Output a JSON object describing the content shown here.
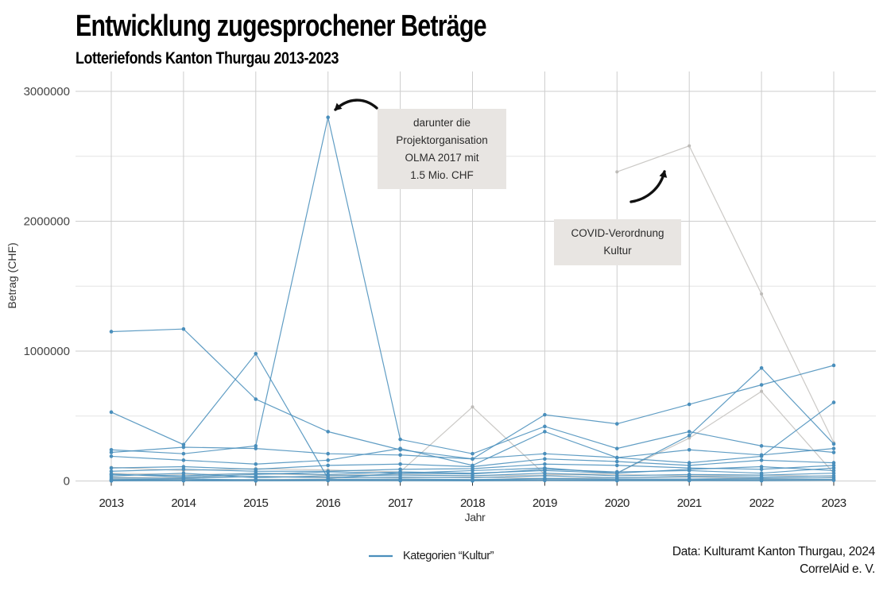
{
  "header": {
    "title": "Entwicklung zugesprochener Beträge",
    "subtitle": "Lotteriefonds Kanton Thurgau 2013-2023"
  },
  "annotations": {
    "olma": "darunter die\nProjektorganisation\nOLMA 2017 mit\n1.5 Mio. CHF",
    "covid": "COVID-Verordnung\nKultur"
  },
  "legend": {
    "label": "Kategorien “Kultur”"
  },
  "caption": {
    "line1": "Data: Kulturamt Kanton Thurgau, 2024",
    "line2": "CorrelAid e. V."
  },
  "colors": {
    "kultur_blue": "#4a8fbc",
    "other_gray": "#c8c6c3",
    "grid_major": "#cdcdcd",
    "grid_minor": "#e4e4e4",
    "axis_text": "#444444",
    "annotation_bg": "#e8e5e2",
    "arrow_black": "#111111"
  },
  "chart_data": {
    "type": "line",
    "title": "Entwicklung zugesprochener Beträge",
    "subtitle": "Lotteriefonds Kanton Thurgau 2013-2023",
    "xlabel": "Jahr",
    "ylabel": "Betrag (CHF)",
    "x": [
      2013,
      2014,
      2015,
      2016,
      2017,
      2018,
      2019,
      2020,
      2021,
      2022,
      2023
    ],
    "x_tick_labels": [
      "2013",
      "2014",
      "2015",
      "2016",
      "2017",
      "2018",
      "2019",
      "2020",
      "2021",
      "2022",
      "2023"
    ],
    "y_tick_values": [
      0,
      1000000,
      2000000,
      3000000
    ],
    "y_tick_labels": [
      "0",
      "1000000",
      "2000000",
      "3000000"
    ],
    "y_minor_gridlines": [
      500000,
      1500000,
      2500000
    ],
    "ylim": [
      0,
      3000000
    ],
    "grid": true,
    "legend_position": "bottom",
    "series": [
      {
        "name": "andere-covid-verordnung-kultur",
        "group": "andere",
        "values": [
          null,
          null,
          null,
          null,
          null,
          null,
          null,
          2380000,
          2580000,
          1440000,
          295000
        ]
      },
      {
        "name": "andere-1",
        "group": "andere",
        "values": [
          105000,
          80000,
          95000,
          85000,
          70000,
          570000,
          50000,
          60000,
          330000,
          690000,
          60000
        ]
      },
      {
        "name": "andere-2",
        "group": "andere",
        "values": [
          60000,
          50000,
          55000,
          45000,
          50000,
          40000,
          45000,
          50000,
          40000,
          45000,
          35000
        ]
      },
      {
        "name": "andere-3",
        "group": "andere",
        "values": [
          30000,
          25000,
          35000,
          30000,
          25000,
          30000,
          20000,
          25000,
          30000,
          20000,
          25000
        ]
      },
      {
        "name": "andere-4",
        "group": "andere",
        "values": [
          15000,
          10000,
          12000,
          15000,
          10000,
          12000,
          10000,
          12000,
          10000,
          15000,
          10000
        ]
      },
      {
        "name": "andere-5",
        "group": "andere",
        "values": [
          5000,
          3000,
          4000,
          5000,
          3000,
          4000,
          3000,
          5000,
          4000,
          3000,
          5000
        ]
      },
      {
        "name": "kultur-1",
        "group": "kultur",
        "values": [
          1150000,
          1170000,
          630000,
          380000,
          240000,
          170000,
          210000,
          180000,
          240000,
          200000,
          250000
        ]
      },
      {
        "name": "kultur-2",
        "group": "kultur",
        "values": [
          530000,
          280000,
          980000,
          20000,
          60000,
          80000,
          100000,
          60000,
          90000,
          110000,
          80000
        ]
      },
      {
        "name": "kultur-3-olma",
        "group": "kultur",
        "values": [
          240000,
          210000,
          270000,
          2800000,
          320000,
          210000,
          420000,
          250000,
          380000,
          270000,
          220000
        ]
      },
      {
        "name": "kultur-4",
        "group": "kultur",
        "values": [
          220000,
          260000,
          250000,
          210000,
          200000,
          170000,
          510000,
          440000,
          590000,
          740000,
          890000
        ]
      },
      {
        "name": "kultur-5",
        "group": "kultur",
        "values": [
          50000,
          40000,
          60000,
          50000,
          70000,
          60000,
          80000,
          60000,
          350000,
          870000,
          285000
        ]
      },
      {
        "name": "kultur-6",
        "group": "kultur",
        "values": [
          190000,
          160000,
          130000,
          160000,
          250000,
          120000,
          380000,
          180000,
          140000,
          190000,
          605000
        ]
      },
      {
        "name": "kultur-7",
        "group": "kultur",
        "values": [
          100000,
          110000,
          90000,
          120000,
          130000,
          110000,
          170000,
          150000,
          120000,
          160000,
          140000
        ]
      },
      {
        "name": "kultur-8",
        "group": "kultur",
        "values": [
          75000,
          90000,
          75000,
          75000,
          90000,
          95000,
          130000,
          120000,
          100000,
          90000,
          120000
        ]
      },
      {
        "name": "kultur-9",
        "group": "kultur",
        "values": [
          54000,
          30000,
          50000,
          70000,
          60000,
          54000,
          90000,
          70000,
          80000,
          60000,
          100000
        ]
      },
      {
        "name": "kultur-10",
        "group": "kultur",
        "values": [
          38000,
          60000,
          25000,
          40000,
          45000,
          40000,
          60000,
          40000,
          50000,
          45000,
          60000
        ]
      },
      {
        "name": "kultur-11",
        "group": "kultur",
        "values": [
          23000,
          20000,
          35000,
          25000,
          30000,
          25000,
          40000,
          25000,
          35000,
          30000,
          40000
        ]
      },
      {
        "name": "kultur-12",
        "group": "kultur",
        "values": [
          10000,
          15000,
          8000,
          12000,
          15000,
          10000,
          20000,
          15000,
          15000,
          20000,
          25000
        ]
      },
      {
        "name": "kultur-13",
        "group": "kultur",
        "values": [
          7000,
          5000,
          10000,
          5000,
          8000,
          6000,
          10000,
          8000,
          8000,
          10000,
          12000
        ]
      },
      {
        "name": "kultur-14",
        "group": "kultur",
        "values": [
          1000,
          2000,
          1000,
          3000,
          2000,
          1000,
          4000,
          2000,
          3000,
          2000,
          5000
        ]
      }
    ]
  }
}
